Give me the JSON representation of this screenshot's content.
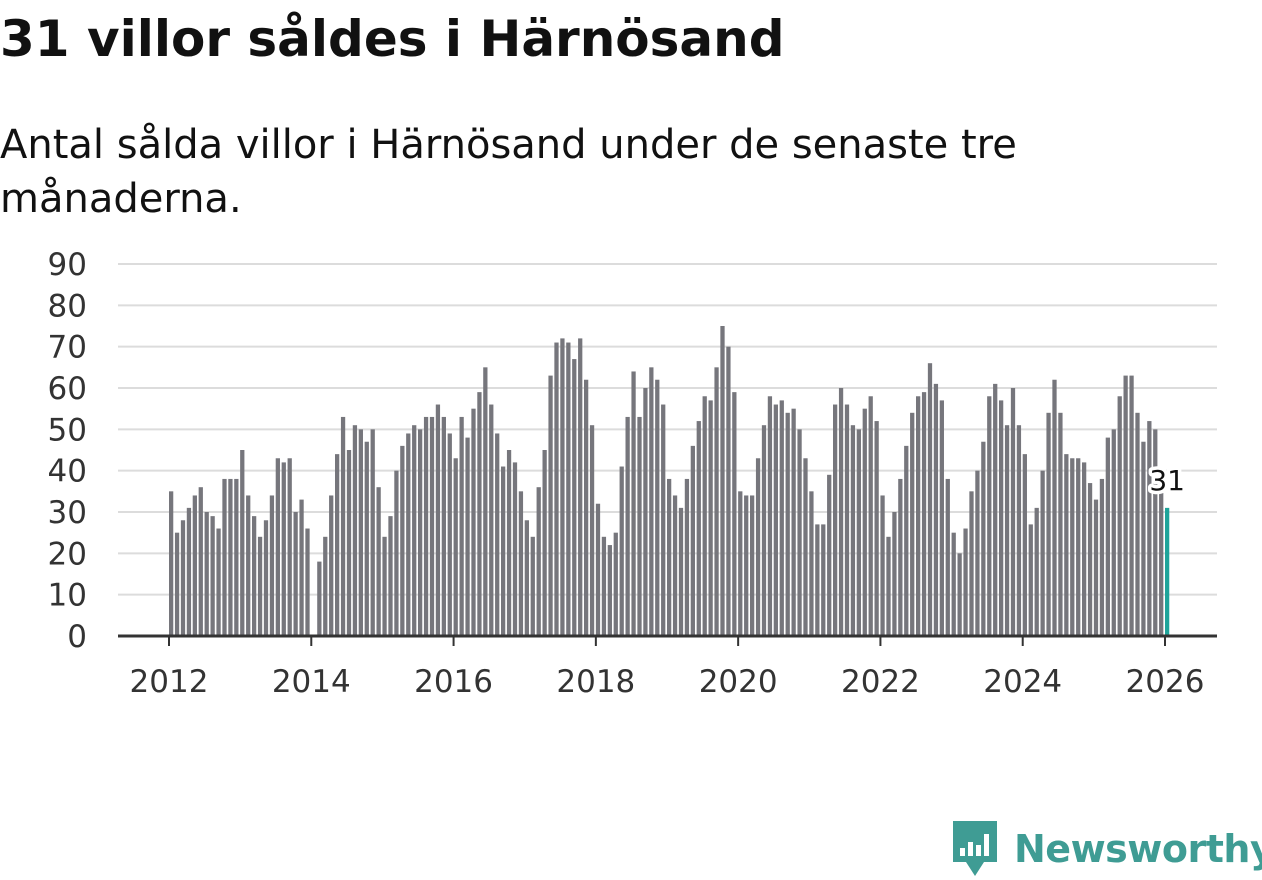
{
  "title": "31 villor såldes i Härnösand",
  "subtitle": "Antal sålda villor i Härnösand under de senaste tre månaderna.",
  "logo": {
    "text": "Newsworthy",
    "icon": "newsworthy-logo-icon",
    "color": "#3f9c94"
  },
  "chart_data": {
    "type": "bar",
    "title": "31 villor såldes i Härnösand",
    "subtitle": "Antal sålda villor i Härnösand under de senaste tre månaderna.",
    "xlabel": "",
    "ylabel": "",
    "ylim": [
      0,
      90
    ],
    "y_ticks": [
      0,
      10,
      20,
      30,
      40,
      50,
      60,
      70,
      80,
      90
    ],
    "x_ticks": [
      "2012",
      "2014",
      "2016",
      "2018",
      "2020",
      "2022",
      "2024",
      "2026"
    ],
    "grid": true,
    "bar_color": "#76767c",
    "highlight_color": "#1fa49a",
    "start": "2012-01",
    "frequency": "monthly",
    "values": [
      35,
      25,
      28,
      31,
      34,
      36,
      30,
      29,
      26,
      38,
      38,
      38,
      45,
      34,
      29,
      24,
      28,
      34,
      43,
      42,
      43,
      30,
      33,
      26,
      0,
      18,
      24,
      34,
      44,
      53,
      45,
      51,
      50,
      47,
      50,
      36,
      24,
      29,
      40,
      46,
      49,
      51,
      50,
      53,
      53,
      56,
      53,
      49,
      43,
      53,
      48,
      55,
      59,
      65,
      56,
      49,
      41,
      45,
      42,
      35,
      28,
      24,
      36,
      45,
      63,
      71,
      72,
      71,
      67,
      72,
      62,
      51,
      32,
      24,
      22,
      25,
      41,
      53,
      64,
      53,
      60,
      65,
      62,
      56,
      38,
      34,
      31,
      38,
      46,
      52,
      58,
      57,
      65,
      75,
      70,
      59,
      35,
      34,
      34,
      43,
      51,
      58,
      56,
      57,
      54,
      55,
      50,
      43,
      35,
      27,
      27,
      39,
      56,
      60,
      56,
      51,
      50,
      55,
      58,
      52,
      34,
      24,
      30,
      38,
      46,
      54,
      58,
      59,
      66,
      61,
      57,
      38,
      25,
      20,
      26,
      35,
      40,
      47,
      58,
      61,
      57,
      51,
      60,
      51,
      44,
      27,
      31,
      40,
      54,
      62,
      54,
      44,
      43,
      43,
      42,
      37,
      33,
      38,
      48,
      50,
      58,
      63,
      63,
      54,
      47,
      52,
      50,
      36,
      31
    ],
    "annotation": {
      "label": "31",
      "value": 31
    }
  }
}
